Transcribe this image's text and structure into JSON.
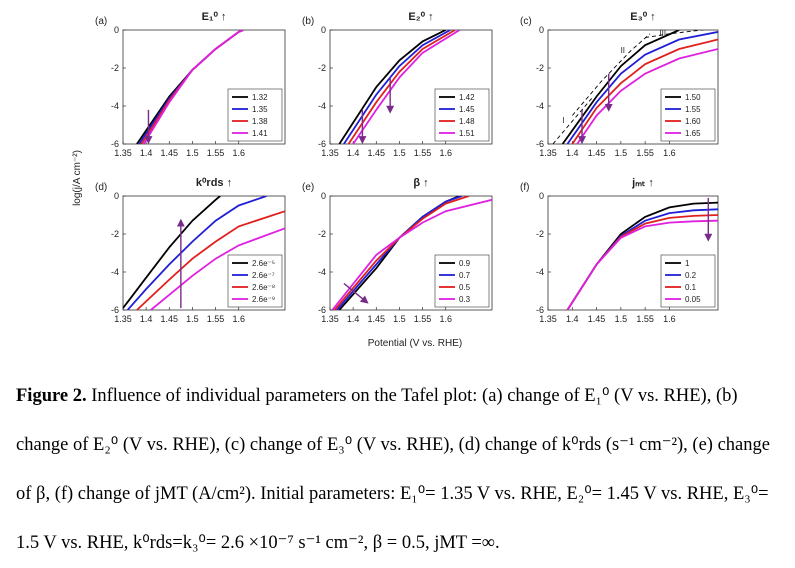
{
  "figure": {
    "ylabel": "log(j/A cm⁻²)",
    "xlabel": "Potential (V vs. RHE)",
    "panels_common": {
      "xlim": [
        1.35,
        1.7
      ],
      "ylim": [
        -6,
        0
      ],
      "xticks": [
        "1.35",
        "1.4",
        "1.45",
        "1.5",
        "1.55",
        "1.6"
      ],
      "yticks": [
        "0",
        "-2",
        "-4",
        "-6"
      ]
    }
  },
  "chart_data": [
    {
      "type": "line",
      "id": "a",
      "letter": "(a)",
      "title": "E₁⁰ ↑",
      "xlim": [
        1.35,
        1.7
      ],
      "ylim": [
        -6,
        0
      ],
      "series": [
        {
          "name": "1.32",
          "color": "#000000",
          "points": [
            [
              1.38,
              -6
            ],
            [
              1.45,
              -3.5
            ],
            [
              1.5,
              -2.1
            ],
            [
              1.55,
              -1.0
            ],
            [
              1.6,
              -0.1
            ],
            [
              1.61,
              0
            ]
          ]
        },
        {
          "name": "1.35",
          "color": "#1f1fd8",
          "points": [
            [
              1.385,
              -6
            ],
            [
              1.45,
              -3.6
            ],
            [
              1.5,
              -2.1
            ],
            [
              1.55,
              -1.0
            ],
            [
              1.6,
              -0.1
            ],
            [
              1.61,
              0
            ]
          ]
        },
        {
          "name": "1.38",
          "color": "#e0201e",
          "points": [
            [
              1.39,
              -6
            ],
            [
              1.45,
              -3.7
            ],
            [
              1.5,
              -2.1
            ],
            [
              1.55,
              -1.0
            ],
            [
              1.6,
              -0.1
            ],
            [
              1.61,
              0
            ]
          ]
        },
        {
          "name": "1.41",
          "color": "#e020e0",
          "points": [
            [
              1.395,
              -6
            ],
            [
              1.45,
              -3.8
            ],
            [
              1.5,
              -2.1
            ],
            [
              1.55,
              -1.0
            ],
            [
              1.6,
              -0.1
            ],
            [
              1.61,
              0
            ]
          ]
        }
      ],
      "arrow": {
        "from": [
          1.405,
          -4.2
        ],
        "to": [
          1.405,
          -5.9
        ]
      },
      "legend": [
        "1.32",
        "1.35",
        "1.38",
        "1.41"
      ]
    },
    {
      "type": "line",
      "id": "b",
      "letter": "(b)",
      "title": "E₂⁰ ↑",
      "xlim": [
        1.35,
        1.7
      ],
      "ylim": [
        -6,
        0
      ],
      "series": [
        {
          "name": "1.42",
          "color": "#000000",
          "points": [
            [
              1.37,
              -6
            ],
            [
              1.45,
              -3.0
            ],
            [
              1.5,
              -1.6
            ],
            [
              1.55,
              -0.6
            ],
            [
              1.6,
              0
            ]
          ]
        },
        {
          "name": "1.45",
          "color": "#1f1fd8",
          "points": [
            [
              1.38,
              -6
            ],
            [
              1.45,
              -3.4
            ],
            [
              1.5,
              -1.9
            ],
            [
              1.55,
              -0.8
            ],
            [
              1.61,
              0
            ]
          ]
        },
        {
          "name": "1.48",
          "color": "#e0201e",
          "points": [
            [
              1.39,
              -6
            ],
            [
              1.45,
              -3.8
            ],
            [
              1.5,
              -2.2
            ],
            [
              1.55,
              -1.0
            ],
            [
              1.62,
              0
            ]
          ]
        },
        {
          "name": "1.51",
          "color": "#e020e0",
          "points": [
            [
              1.4,
              -6
            ],
            [
              1.45,
              -4.2
            ],
            [
              1.5,
              -2.5
            ],
            [
              1.55,
              -1.2
            ],
            [
              1.63,
              0
            ]
          ]
        }
      ],
      "arrow": {
        "from": [
          1.48,
          -2.5
        ],
        "to": [
          1.48,
          -4.3
        ]
      },
      "arrow2": {
        "from": [
          1.42,
          -4.2
        ],
        "to": [
          1.42,
          -5.9
        ]
      },
      "legend": [
        "1.42",
        "1.45",
        "1.48",
        "1.51"
      ]
    },
    {
      "type": "line",
      "id": "c",
      "letter": "(c)",
      "title": "E₃⁰ ↑",
      "xlim": [
        1.35,
        1.7
      ],
      "ylim": [
        -6,
        0
      ],
      "series": [
        {
          "name": "1.50",
          "color": "#000000",
          "points": [
            [
              1.38,
              -6
            ],
            [
              1.45,
              -3.5
            ],
            [
              1.5,
              -1.9
            ],
            [
              1.55,
              -0.8
            ],
            [
              1.62,
              0
            ]
          ]
        },
        {
          "name": "1.55",
          "color": "#1f1fd8",
          "points": [
            [
              1.39,
              -6
            ],
            [
              1.45,
              -3.8
            ],
            [
              1.5,
              -2.3
            ],
            [
              1.55,
              -1.3
            ],
            [
              1.62,
              -0.5
            ],
            [
              1.7,
              -0.1
            ]
          ]
        },
        {
          "name": "1.60",
          "color": "#e0201e",
          "points": [
            [
              1.4,
              -6
            ],
            [
              1.45,
              -4.1
            ],
            [
              1.5,
              -2.8
            ],
            [
              1.55,
              -1.8
            ],
            [
              1.62,
              -1.0
            ],
            [
              1.7,
              -0.5
            ]
          ]
        },
        {
          "name": "1.65",
          "color": "#e020e0",
          "points": [
            [
              1.41,
              -6
            ],
            [
              1.45,
              -4.5
            ],
            [
              1.5,
              -3.2
            ],
            [
              1.55,
              -2.3
            ],
            [
              1.62,
              -1.5
            ],
            [
              1.7,
              -1.0
            ]
          ]
        }
      ],
      "guides": [
        {
          "label": "I",
          "points": [
            [
              1.36,
              -6
            ],
            [
              1.4,
              -4.8
            ],
            [
              1.44,
              -3.6
            ]
          ]
        },
        {
          "label": "II",
          "points": [
            [
              1.4,
              -4.5
            ],
            [
              1.46,
              -2.7
            ],
            [
              1.52,
              -1.1
            ],
            [
              1.56,
              -0.2
            ]
          ]
        },
        {
          "label": "III",
          "points": [
            [
              1.55,
              -0.4
            ],
            [
              1.6,
              -0.2
            ],
            [
              1.7,
              0.1
            ]
          ]
        }
      ],
      "arrow": {
        "from": [
          1.42,
          -4.2
        ],
        "to": [
          1.42,
          -5.9
        ]
      },
      "arrow2": {
        "from": [
          1.475,
          -2.3
        ],
        "to": [
          1.475,
          -4.2
        ]
      },
      "legend": [
        "1.50",
        "1.55",
        "1.60",
        "1.65"
      ]
    },
    {
      "type": "line",
      "id": "d",
      "letter": "(d)",
      "title": "k⁰rds ↑",
      "xlim": [
        1.35,
        1.7
      ],
      "ylim": [
        -6,
        0
      ],
      "series": [
        {
          "name": "2.6e⁻⁵",
          "color": "#000000",
          "points": [
            [
              1.35,
              -5.9
            ],
            [
              1.4,
              -4.3
            ],
            [
              1.45,
              -2.7
            ],
            [
              1.5,
              -1.3
            ],
            [
              1.55,
              -0.2
            ],
            [
              1.56,
              0
            ]
          ]
        },
        {
          "name": "2.6e⁻⁷",
          "color": "#1f1fd8",
          "points": [
            [
              1.36,
              -6
            ],
            [
              1.4,
              -4.9
            ],
            [
              1.45,
              -3.6
            ],
            [
              1.5,
              -2.4
            ],
            [
              1.55,
              -1.3
            ],
            [
              1.6,
              -0.5
            ],
            [
              1.66,
              0
            ]
          ]
        },
        {
          "name": "2.6e⁻⁸",
          "color": "#e0201e",
          "points": [
            [
              1.38,
              -6
            ],
            [
              1.45,
              -4.4
            ],
            [
              1.5,
              -3.3
            ],
            [
              1.55,
              -2.4
            ],
            [
              1.6,
              -1.6
            ],
            [
              1.7,
              -0.8
            ]
          ]
        },
        {
          "name": "2.6e⁻⁹",
          "color": "#e020e0",
          "points": [
            [
              1.41,
              -6
            ],
            [
              1.45,
              -5.2
            ],
            [
              1.5,
              -4.2
            ],
            [
              1.55,
              -3.3
            ],
            [
              1.6,
              -2.6
            ],
            [
              1.7,
              -1.7
            ]
          ]
        }
      ],
      "arrow": {
        "from": [
          1.475,
          -5.9
        ],
        "to": [
          1.475,
          -1.3
        ]
      },
      "legend": [
        "2.6e⁻⁵",
        "2.6e⁻⁷",
        "2.6e⁻⁸",
        "2.6e⁻⁹"
      ]
    },
    {
      "type": "line",
      "id": "e",
      "letter": "(e)",
      "title": "β ↑",
      "xlim": [
        1.35,
        1.7
      ],
      "ylim": [
        -6,
        0
      ],
      "series": [
        {
          "name": "0.9",
          "color": "#000000",
          "points": [
            [
              1.37,
              -6
            ],
            [
              1.45,
              -3.8
            ],
            [
              1.5,
              -2.2
            ],
            [
              1.55,
              -1.1
            ],
            [
              1.6,
              -0.3
            ],
            [
              1.63,
              0
            ]
          ]
        },
        {
          "name": "0.7",
          "color": "#1f1fd8",
          "points": [
            [
              1.365,
              -6
            ],
            [
              1.45,
              -3.6
            ],
            [
              1.5,
              -2.2
            ],
            [
              1.55,
              -1.1
            ],
            [
              1.6,
              -0.3
            ],
            [
              1.635,
              0
            ]
          ]
        },
        {
          "name": "0.5",
          "color": "#e0201e",
          "points": [
            [
              1.36,
              -6
            ],
            [
              1.45,
              -3.4
            ],
            [
              1.5,
              -2.2
            ],
            [
              1.55,
              -1.2
            ],
            [
              1.6,
              -0.4
            ],
            [
              1.65,
              0
            ]
          ]
        },
        {
          "name": "0.3",
          "color": "#e020e0",
          "points": [
            [
              1.355,
              -6
            ],
            [
              1.45,
              -3.1
            ],
            [
              1.5,
              -2.2
            ],
            [
              1.55,
              -1.4
            ],
            [
              1.6,
              -0.8
            ],
            [
              1.7,
              -0.2
            ]
          ]
        }
      ],
      "arrow": {
        "from": [
          1.38,
          -4.6
        ],
        "to": [
          1.43,
          -5.6
        ]
      },
      "legend": [
        "0.9",
        "0.7",
        "0.5",
        "0.3"
      ]
    },
    {
      "type": "line",
      "id": "f",
      "letter": "(f)",
      "title": "jₘₜ ↑",
      "xlim": [
        1.35,
        1.7
      ],
      "ylim": [
        -6,
        0
      ],
      "series": [
        {
          "name": "1",
          "color": "#000000",
          "points": [
            [
              1.39,
              -6
            ],
            [
              1.45,
              -3.6
            ],
            [
              1.5,
              -2.0
            ],
            [
              1.55,
              -1.1
            ],
            [
              1.6,
              -0.6
            ],
            [
              1.65,
              -0.4
            ],
            [
              1.7,
              -0.35
            ]
          ]
        },
        {
          "name": "0.2",
          "color": "#1f1fd8",
          "points": [
            [
              1.39,
              -6
            ],
            [
              1.45,
              -3.6
            ],
            [
              1.5,
              -2.1
            ],
            [
              1.55,
              -1.3
            ],
            [
              1.6,
              -0.9
            ],
            [
              1.65,
              -0.75
            ],
            [
              1.7,
              -0.7
            ]
          ]
        },
        {
          "name": "0.1",
          "color": "#e0201e",
          "points": [
            [
              1.39,
              -6
            ],
            [
              1.45,
              -3.6
            ],
            [
              1.5,
              -2.15
            ],
            [
              1.55,
              -1.45
            ],
            [
              1.6,
              -1.15
            ],
            [
              1.65,
              -1.05
            ],
            [
              1.7,
              -1.0
            ]
          ]
        },
        {
          "name": "0.05",
          "color": "#e020e0",
          "points": [
            [
              1.39,
              -6
            ],
            [
              1.45,
              -3.6
            ],
            [
              1.5,
              -2.2
            ],
            [
              1.55,
              -1.6
            ],
            [
              1.6,
              -1.4
            ],
            [
              1.65,
              -1.33
            ],
            [
              1.7,
              -1.3
            ]
          ]
        }
      ],
      "arrow": {
        "from": [
          1.68,
          -0.1
        ],
        "to": [
          1.68,
          -2.3
        ]
      },
      "legend": [
        "1",
        "0.2",
        "0.1",
        "0.05"
      ]
    }
  ],
  "caption": {
    "label": "Figure 2.",
    "text": "Influence of individual parameters on the Tafel plot: (a) change of E₁⁰ (V vs. RHE), (b) change of E₂⁰ (V vs. RHE), (c) change of E₃⁰ (V vs. RHE), (d) change of k⁰rds (s⁻¹ cm⁻²), (e) change of β, (f) change of jMT (A/cm²). Initial parameters: E₁⁰= 1.35 V vs. RHE, E₂⁰= 1.45 V vs. RHE, E₃⁰= 1.5 V vs. RHE, k⁰rds=k₃⁰= 2.6 ×10⁻⁷ s⁻¹ cm⁻², β = 0.5, jMT =∞."
  }
}
